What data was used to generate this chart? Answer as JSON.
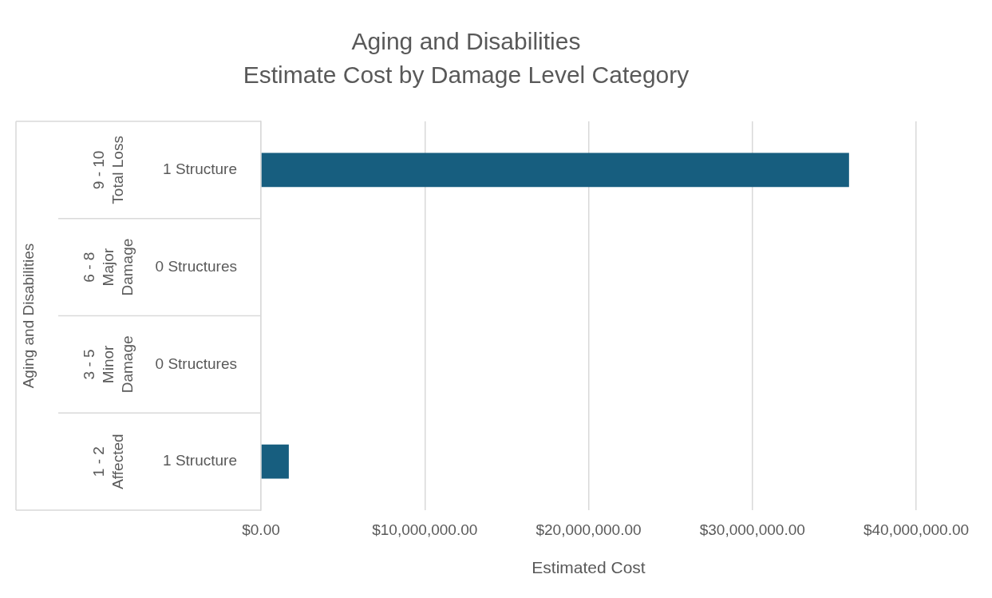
{
  "chart_data": {
    "type": "bar",
    "orientation": "horizontal",
    "title": "Aging and Disabilities",
    "subtitle": "Estimate Cost by Damage Level Category",
    "categories": [
      "1 Structure",
      "0 Structures",
      "0 Structures",
      "1 Structure"
    ],
    "values": [
      35900000,
      0,
      0,
      1700000
    ],
    "color": "#175e7f",
    "xlim": [
      0,
      40000000
    ],
    "xticks": [
      {
        "value": 0,
        "label": "$0.00"
      },
      {
        "value": 10000000,
        "label": "$10,000,000.00"
      },
      {
        "value": 20000000,
        "label": "$20,000,000.00"
      },
      {
        "value": 30000000,
        "label": "$30,000,000.00"
      },
      {
        "value": 40000000,
        "label": "$40,000,000.00"
      }
    ],
    "xlabel": "Estimated Cost",
    "annotations": [
      "Aging and Disabilities",
      "9 - 10\nTotal Loss",
      "6 - 8\nMajor\nDamage",
      "3 - 5\nMinor\nDamage",
      "1 - 2\nAffected"
    ],
    "grid": "x",
    "legend": false
  }
}
